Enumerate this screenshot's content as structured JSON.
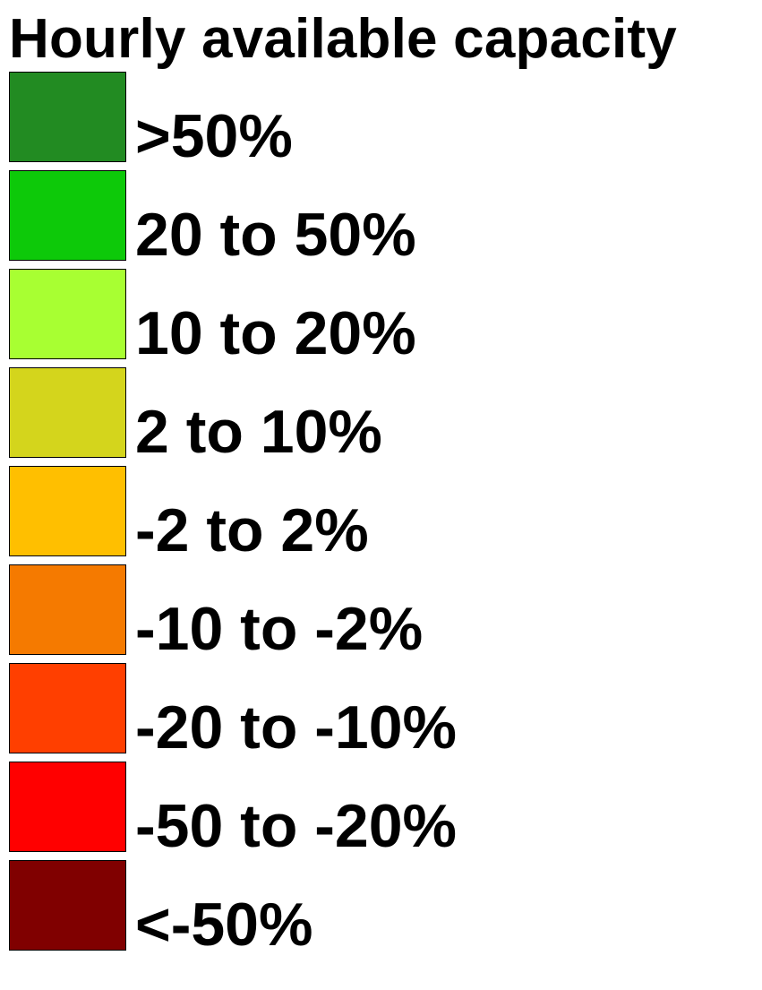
{
  "legend": {
    "title": "Hourly available capacity",
    "items": [
      {
        "label": ">50%",
        "color": "#228B22"
      },
      {
        "label": "20 to 50%",
        "color": "#0DC909"
      },
      {
        "label": "10 to 20%",
        "color": "#A8FF32"
      },
      {
        "label": "2 to 10%",
        "color": "#D4D51C"
      },
      {
        "label": "-2 to 2%",
        "color": "#FFBF00"
      },
      {
        "label": "-10 to -2%",
        "color": "#F57A00"
      },
      {
        "label": "-20 to -10%",
        "color": "#FF3F00"
      },
      {
        "label": "-50 to -20%",
        "color": "#FF0000"
      },
      {
        "label": "<-50%",
        "color": "#800000"
      }
    ]
  }
}
